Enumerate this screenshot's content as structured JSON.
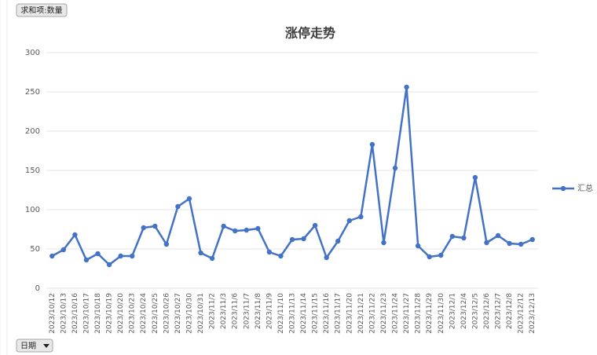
{
  "pivot_buttons": {
    "value_field": "求和项:数量",
    "axis_field": "日期"
  },
  "chart_data": {
    "type": "line",
    "title": "涨停走势",
    "categories": [
      "2023/10/12",
      "2023/10/13",
      "2023/10/16",
      "2023/10/17",
      "2023/10/18",
      "2023/10/19",
      "2023/10/20",
      "2023/10/23",
      "2023/10/24",
      "2023/10/25",
      "2023/10/26",
      "2023/10/27",
      "2023/10/30",
      "2023/10/31",
      "2023/11/2",
      "2023/11/3",
      "2023/11/6",
      "2023/11/7",
      "2023/11/8",
      "2023/11/9",
      "2023/11/10",
      "2023/11/13",
      "2023/11/14",
      "2023/11/15",
      "2023/11/16",
      "2023/11/17",
      "2023/11/20",
      "2023/11/21",
      "2023/11/22",
      "2023/11/23",
      "2023/11/24",
      "2023/11/27",
      "2023/11/28",
      "2023/11/29",
      "2023/11/30",
      "2023/12/1",
      "2023/12/4",
      "2023/12/5",
      "2023/12/6",
      "2023/12/7",
      "2023/12/8",
      "2023/12/12",
      "2023/12/13"
    ],
    "series": [
      {
        "name": "汇总",
        "color": "#4472c4",
        "values": [
          41,
          49,
          68,
          36,
          44,
          30,
          41,
          41,
          77,
          79,
          56,
          104,
          114,
          45,
          38,
          79,
          73,
          74,
          76,
          46,
          41,
          62,
          63,
          80,
          39,
          60,
          86,
          91,
          183,
          58,
          153,
          256,
          54,
          40,
          42,
          66,
          64,
          141,
          58,
          67,
          57,
          56,
          62
        ]
      }
    ],
    "ylim": [
      0,
      300
    ],
    "yticks": [
      0,
      50,
      100,
      150,
      200,
      250,
      300
    ],
    "grid": true,
    "legend": "right"
  }
}
